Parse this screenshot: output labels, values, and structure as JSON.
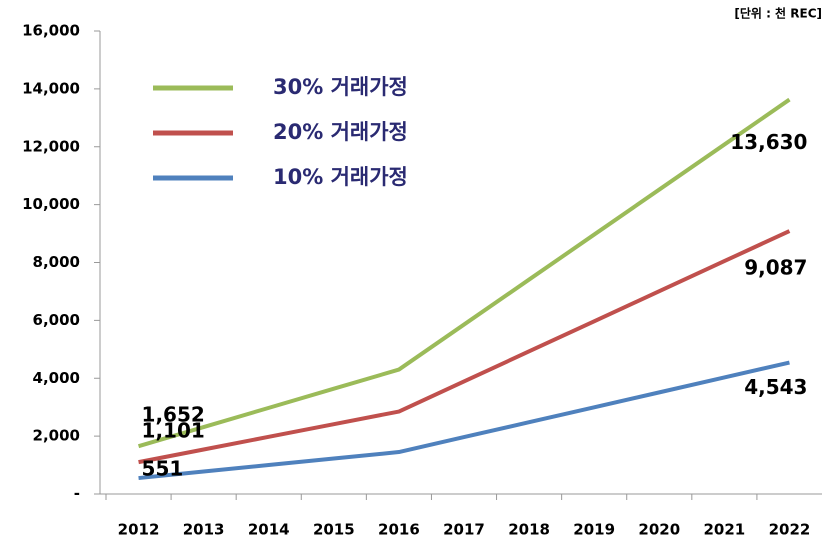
{
  "chart_data": {
    "type": "line",
    "annotation": "[단위 : 천 REC]",
    "categories": [
      "2012",
      "2013",
      "2014",
      "2015",
      "2016",
      "2017",
      "2018",
      "2019",
      "2020",
      "2021",
      "2022"
    ],
    "series": [
      {
        "name": "30% 거래가정",
        "color": "#9bbb59",
        "values": [
          1652,
          2314,
          2976,
          3638,
          4300,
          5855,
          7410,
          8965,
          10520,
          12075,
          13630
        ],
        "value_labels": [
          "1,652",
          null,
          null,
          null,
          null,
          null,
          null,
          null,
          null,
          null,
          "13,630"
        ]
      },
      {
        "name": "20% 거래가정",
        "color": "#c0504d",
        "values": [
          1101,
          1538,
          1976,
          2413,
          2850,
          3890,
          4929,
          5969,
          7008,
          8048,
          9087
        ],
        "value_labels": [
          "1,101",
          null,
          null,
          null,
          null,
          null,
          null,
          null,
          null,
          null,
          "9,087"
        ]
      },
      {
        "name": "10% 거래가정",
        "color": "#4f81bd",
        "values": [
          551,
          776,
          1001,
          1226,
          1450,
          1966,
          2481,
          2997,
          3512,
          4028,
          4543
        ],
        "value_labels": [
          "551",
          null,
          null,
          null,
          null,
          null,
          null,
          null,
          null,
          null,
          "4,543"
        ]
      }
    ],
    "ylim": [
      0,
      16000
    ],
    "yticks": [
      {
        "value": 0,
        "label": "-"
      },
      {
        "value": 2000,
        "label": "2,000"
      },
      {
        "value": 4000,
        "label": "4,000"
      },
      {
        "value": 6000,
        "label": "6,000"
      },
      {
        "value": 8000,
        "label": "8,000"
      },
      {
        "value": 10000,
        "label": "10,000"
      },
      {
        "value": 12000,
        "label": "12,000"
      },
      {
        "value": 14000,
        "label": "14,000"
      },
      {
        "value": 16000,
        "label": "16,000"
      }
    ],
    "legend": "upper left",
    "grid": false
  }
}
